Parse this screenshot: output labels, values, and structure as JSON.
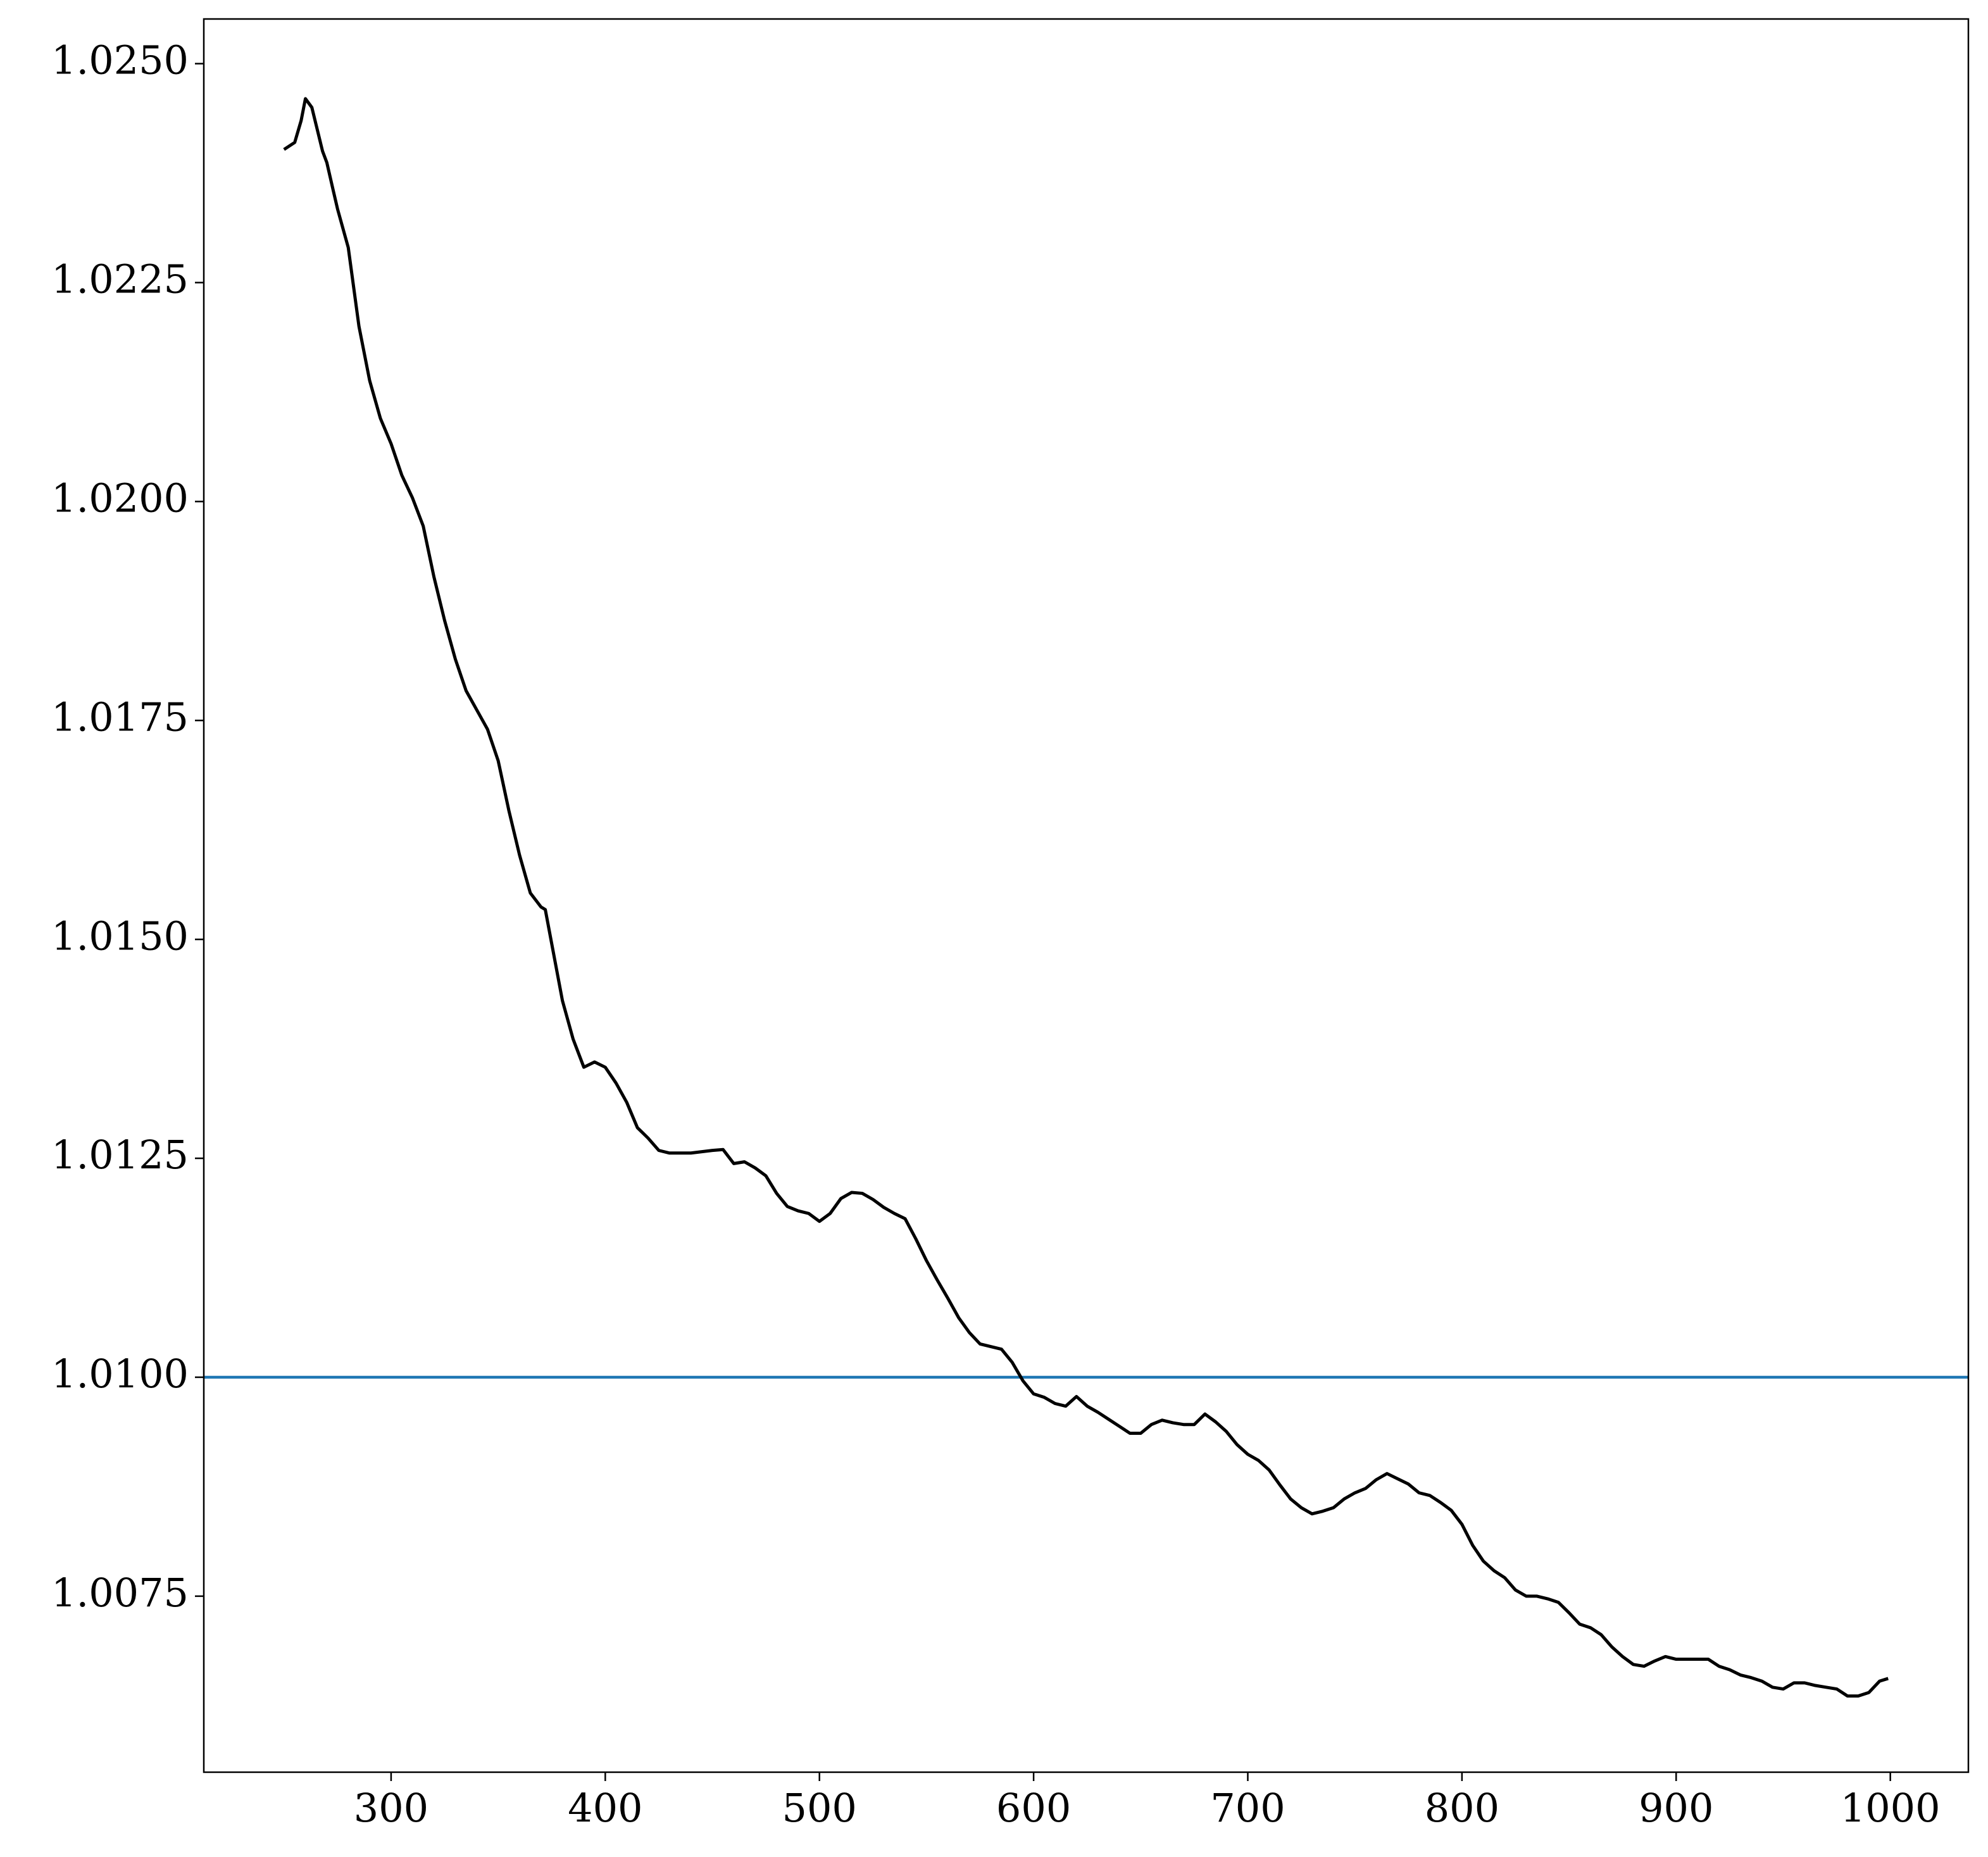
{
  "chart_data": {
    "type": "line",
    "x": [
      250,
      255,
      258,
      260,
      263,
      265,
      268,
      270,
      273,
      275,
      280,
      285,
      290,
      295,
      300,
      305,
      310,
      315,
      320,
      325,
      330,
      335,
      340,
      345,
      350,
      355,
      360,
      365,
      370,
      372,
      375,
      380,
      385,
      390,
      395,
      400,
      405,
      410,
      415,
      420,
      425,
      430,
      440,
      450,
      455,
      460,
      465,
      470,
      475,
      480,
      485,
      490,
      495,
      500,
      505,
      510,
      515,
      520,
      525,
      530,
      535,
      540,
      545,
      550,
      555,
      560,
      565,
      570,
      575,
      580,
      585,
      590,
      595,
      600,
      605,
      610,
      615,
      620,
      625,
      630,
      635,
      640,
      645,
      650,
      655,
      660,
      665,
      670,
      675,
      680,
      685,
      690,
      695,
      700,
      705,
      710,
      715,
      720,
      725,
      730,
      735,
      740,
      745,
      750,
      755,
      760,
      765,
      770,
      775,
      780,
      785,
      790,
      795,
      800,
      805,
      810,
      815,
      820,
      825,
      830,
      835,
      840,
      845,
      850,
      855,
      860,
      865,
      870,
      875,
      880,
      885,
      890,
      895,
      900,
      905,
      910,
      915,
      920,
      925,
      930,
      935,
      940,
      945,
      950,
      955,
      960,
      965,
      970,
      975,
      980,
      985,
      990,
      995,
      999
    ],
    "series": [
      {
        "color": "#000000",
        "values": [
          1.02402,
          1.0241,
          1.02435,
          1.0246,
          1.0245,
          1.0243,
          1.024,
          1.02387,
          1.02355,
          1.02334,
          1.0229,
          1.022,
          1.02138,
          1.02095,
          1.02066,
          1.0203,
          1.02004,
          1.01972,
          1.01914,
          1.01864,
          1.0182,
          1.01784,
          1.01762,
          1.0174,
          1.01704,
          1.01647,
          1.01596,
          1.01553,
          1.01537,
          1.01534,
          1.01495,
          1.0143,
          1.01386,
          1.01354,
          1.0136,
          1.01354,
          1.01336,
          1.01314,
          1.01285,
          1.01273,
          1.01259,
          1.01256,
          1.01256,
          1.01259,
          1.0126,
          1.01244,
          1.01246,
          1.01239,
          1.0123,
          1.0121,
          1.01195,
          1.0119,
          1.01187,
          1.01178,
          1.01187,
          1.01204,
          1.01211,
          1.0121,
          1.01203,
          1.01194,
          1.01187,
          1.01181,
          1.01158,
          1.01133,
          1.01111,
          1.0109,
          1.01068,
          1.01051,
          1.01038,
          1.01035,
          1.01032,
          1.01017,
          1.00996,
          1.00981,
          1.00977,
          1.0097,
          1.00967,
          1.00978,
          1.00967,
          1.0096,
          1.00952,
          1.00944,
          1.00936,
          1.00936,
          1.00946,
          1.00951,
          1.00948,
          1.00946,
          1.00946,
          1.00958,
          1.00949,
          1.00938,
          1.00923,
          1.00912,
          1.00905,
          1.00894,
          1.00877,
          1.00861,
          1.00851,
          1.00844,
          1.00847,
          1.00851,
          1.00861,
          1.00868,
          1.00873,
          1.00883,
          1.0089,
          1.00884,
          1.00878,
          1.00868,
          1.00865,
          1.00857,
          1.00848,
          1.00832,
          1.00808,
          1.0079,
          1.00779,
          1.00771,
          1.00757,
          1.0075,
          1.0075,
          1.00747,
          1.00743,
          1.00731,
          1.00718,
          1.00714,
          1.00706,
          1.00692,
          1.00681,
          1.00672,
          1.0067,
          1.00676,
          1.00681,
          1.00678,
          1.00678,
          1.00678,
          1.00678,
          1.0067,
          1.00666,
          1.0066,
          1.00657,
          1.00653,
          1.00646,
          1.00644,
          1.00651,
          1.00651,
          1.00648,
          1.00646,
          1.00644,
          1.00636,
          1.00636,
          1.0064,
          1.00653,
          1.00656
        ]
      }
    ],
    "hline": {
      "y": 1.01,
      "color": "#1f77b4"
    },
    "xlim": [
      212.55,
      1036.45
    ],
    "xticks": [
      300,
      400,
      500,
      600,
      700,
      800,
      900,
      1000
    ],
    "ylim": [
      1.00549,
      1.02551
    ],
    "yticks": [
      {
        "value": 1.0075,
        "label": "1.0075"
      },
      {
        "value": 1.01,
        "label": "1.0100"
      },
      {
        "value": 1.0125,
        "label": "1.0125"
      },
      {
        "value": 1.015,
        "label": "1.0150"
      },
      {
        "value": 1.0175,
        "label": "1.0175"
      },
      {
        "value": 1.02,
        "label": "1.0200"
      },
      {
        "value": 1.0225,
        "label": "1.0225"
      },
      {
        "value": 1.025,
        "label": "1.0250"
      }
    ]
  }
}
